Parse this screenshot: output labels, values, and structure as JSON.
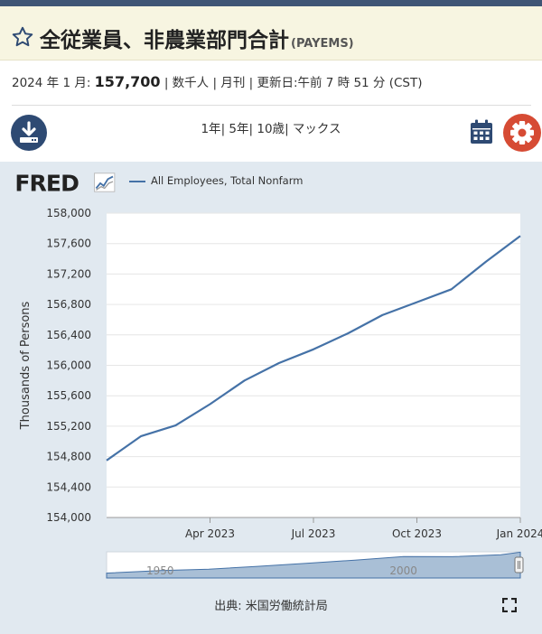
{
  "header": {
    "title": "全従業員、非農業部門合計",
    "series_code": "(PAYEMS)"
  },
  "observation": {
    "date_label": "2024 年 1 月:",
    "value": "157,700",
    "rest": "| 数千人 | 月刊 | 更新日:午前 7 時 51 分 (CST)"
  },
  "ranges": {
    "items": [
      "1年",
      "5年",
      "10歳",
      "マックス"
    ],
    "sep": "|"
  },
  "logo": {
    "text": "FRED"
  },
  "legend": {
    "label": "All Employees, Total Nonfarm",
    "color": "#4572a7"
  },
  "source": {
    "label": "出典: 米国労働統計局"
  },
  "colors": {
    "accent": "#2e4a73",
    "settings": "#d64b34",
    "line": "#4572a7",
    "panel": "#e1e9f0"
  },
  "icons": {
    "star": "star-icon",
    "download": "download-icon",
    "calendar": "calendar-icon",
    "settings": "gear-icon",
    "fullscreen": "fullscreen-icon"
  },
  "chart_data": {
    "type": "line",
    "ylabel": "Thousands of Persons",
    "xlabel": "",
    "ylim": [
      154000,
      158000
    ],
    "yticks": [
      154000,
      154400,
      154800,
      155200,
      155600,
      156000,
      156400,
      156800,
      157200,
      157600,
      158000
    ],
    "ytick_labels": [
      "154,000",
      "154,400",
      "154,800",
      "155,200",
      "155,600",
      "156,000",
      "156,400",
      "156,800",
      "157,200",
      "157,600",
      "158,000"
    ],
    "xlim": [
      "2023-01",
      "2024-01"
    ],
    "xticks": [
      "2023-04",
      "2023-07",
      "2023-10",
      "2024-01"
    ],
    "xtick_labels": [
      "Apr 2023",
      "Jul 2023",
      "Oct 2023",
      "Jan 2024"
    ],
    "x": [
      "2023-01",
      "2023-02",
      "2023-03",
      "2023-04",
      "2023-05",
      "2023-06",
      "2023-07",
      "2023-08",
      "2023-09",
      "2023-10",
      "2023-11",
      "2023-12",
      "2024-01"
    ],
    "series": [
      {
        "values": [
          154750,
          155070,
          155210,
          155490,
          155800,
          156030,
          156210,
          156420,
          156660,
          156830,
          157000,
          157360,
          157700
        ]
      }
    ],
    "grid": true,
    "navigator": {
      "tick_labels": [
        "1950",
        "2000"
      ],
      "x": [
        1939,
        1950,
        1960,
        1970,
        1980,
        1990,
        2000,
        2010,
        2020,
        2024
      ],
      "values": [
        30000,
        45000,
        54000,
        71000,
        90000,
        109000,
        131000,
        130000,
        142000,
        157700
      ],
      "ylim": [
        0,
        160000
      ]
    }
  }
}
